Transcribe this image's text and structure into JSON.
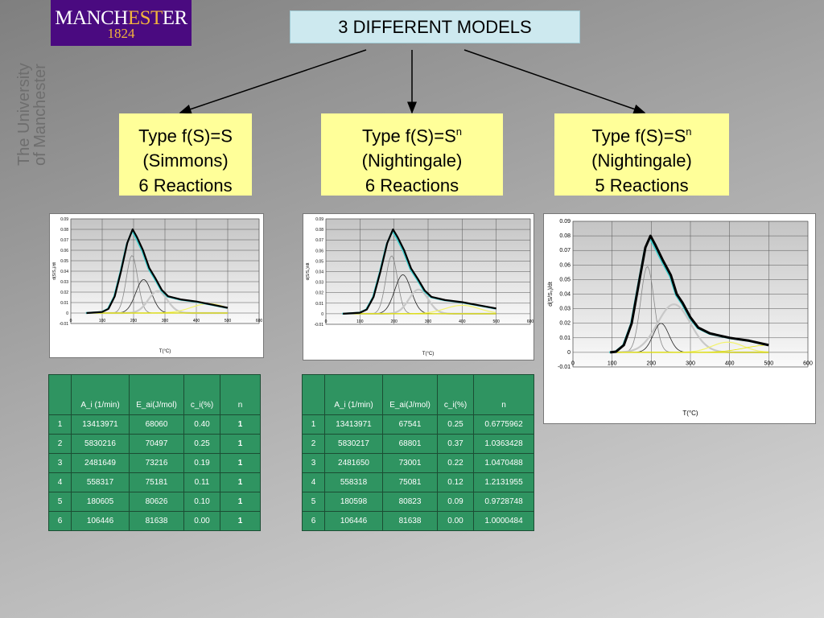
{
  "logo": {
    "name_pre": "MANCH",
    "name_est": "EST",
    "name_post": "ER",
    "year": "1824"
  },
  "watermark": {
    "line1": "The University",
    "line2": "of Manchester"
  },
  "title": "3 DIFFERENT MODELS",
  "models": [
    {
      "line1": "Type f(S)=S",
      "sup": "",
      "line2": "(Simmons)",
      "line3": "6 Reactions"
    },
    {
      "line1": "Type f(S)=S",
      "sup": "n",
      "line2": "(Nightingale)",
      "line3": "6 Reactions"
    },
    {
      "line1": "Type f(S)=S",
      "sup": "n",
      "line2": "(Nightingale)",
      "line3": "5 Reactions"
    }
  ],
  "chart_data": [
    {
      "type": "line",
      "title": "",
      "xlabel": "T(°C)",
      "ylabel": "d(S/S₀)/dt",
      "xlim": [
        0,
        600
      ],
      "ylim": [
        -0.01,
        0.09
      ],
      "xticks": [
        "0",
        "100",
        "200",
        "300",
        "400",
        "500",
        "600"
      ],
      "yticks": [
        "-0.01",
        "0",
        "0.01",
        "0.02",
        "0.03",
        "0.04",
        "0.05",
        "0.06",
        "0.07",
        "0.08",
        "0.09"
      ],
      "total": [
        [
          50,
          0
        ],
        [
          100,
          0.001
        ],
        [
          120,
          0.004
        ],
        [
          140,
          0.016
        ],
        [
          160,
          0.04
        ],
        [
          180,
          0.067
        ],
        [
          197,
          0.08
        ],
        [
          210,
          0.073
        ],
        [
          230,
          0.06
        ],
        [
          250,
          0.043
        ],
        [
          270,
          0.033
        ],
        [
          290,
          0.022
        ],
        [
          310,
          0.016
        ],
        [
          350,
          0.013
        ],
        [
          400,
          0.011
        ],
        [
          450,
          0.008
        ],
        [
          500,
          0.005
        ]
      ],
      "components": [
        {
          "center": 195,
          "height": 0.055,
          "width": 18,
          "color": "#888888"
        },
        {
          "center": 232,
          "height": 0.032,
          "width": 25,
          "color": "#222222"
        },
        {
          "center": 277,
          "height": 0.021,
          "width": 30,
          "color": "#c8c8c8"
        },
        {
          "center": 440,
          "height": 0.009,
          "width": 55,
          "color": "#f3f36a"
        }
      ]
    },
    {
      "type": "line",
      "title": "",
      "xlabel": "T(°C)",
      "ylabel": "d(S/S₀)/dt",
      "xlim": [
        0,
        600
      ],
      "ylim": [
        -0.01,
        0.09
      ],
      "xticks": [
        "0",
        "100",
        "200",
        "300",
        "400",
        "500",
        "600"
      ],
      "yticks": [
        "-0.01",
        "0",
        "0.01",
        "0.02",
        "0.03",
        "0.04",
        "0.05",
        "0.06",
        "0.07",
        "0.08",
        "0.09"
      ],
      "total": [
        [
          50,
          0
        ],
        [
          100,
          0.001
        ],
        [
          120,
          0.004
        ],
        [
          140,
          0.016
        ],
        [
          160,
          0.04
        ],
        [
          180,
          0.067
        ],
        [
          197,
          0.08
        ],
        [
          210,
          0.073
        ],
        [
          230,
          0.06
        ],
        [
          250,
          0.043
        ],
        [
          270,
          0.033
        ],
        [
          290,
          0.022
        ],
        [
          310,
          0.016
        ],
        [
          350,
          0.013
        ],
        [
          400,
          0.011
        ],
        [
          450,
          0.008
        ],
        [
          500,
          0.005
        ]
      ],
      "components": [
        {
          "center": 193,
          "height": 0.055,
          "width": 17,
          "color": "#888888"
        },
        {
          "center": 226,
          "height": 0.037,
          "width": 24,
          "color": "#222222"
        },
        {
          "center": 272,
          "height": 0.023,
          "width": 28,
          "color": "#c8c8c8"
        },
        {
          "center": 400,
          "height": 0.008,
          "width": 50,
          "color": "#f3f36a"
        }
      ]
    },
    {
      "type": "line",
      "title": "",
      "xlabel": "T(°C)",
      "ylabel": "d(S/S₀)/dt",
      "xlim": [
        0,
        600
      ],
      "ylim": [
        -0.01,
        0.09
      ],
      "xticks": [
        "0",
        "100",
        "200",
        "300",
        "400",
        "500",
        "600"
      ],
      "yticks": [
        "-0.01",
        "0",
        "0.01",
        "0.02",
        "0.03",
        "0.04",
        "0.05",
        "0.06",
        "0.07",
        "0.08",
        "0.09"
      ],
      "total": [
        [
          95,
          0
        ],
        [
          110,
          0.0005
        ],
        [
          130,
          0.005
        ],
        [
          150,
          0.02
        ],
        [
          170,
          0.05
        ],
        [
          185,
          0.072
        ],
        [
          198,
          0.08
        ],
        [
          210,
          0.074
        ],
        [
          230,
          0.063
        ],
        [
          250,
          0.053
        ],
        [
          265,
          0.04
        ],
        [
          280,
          0.034
        ],
        [
          300,
          0.024
        ],
        [
          320,
          0.017
        ],
        [
          350,
          0.013
        ],
        [
          400,
          0.01
        ],
        [
          450,
          0.008
        ],
        [
          500,
          0.005
        ]
      ],
      "components": [
        {
          "center": 190,
          "height": 0.059,
          "width": 17,
          "color": "#888888"
        },
        {
          "center": 225,
          "height": 0.02,
          "width": 20,
          "color": "#222222"
        },
        {
          "center": 258,
          "height": 0.033,
          "width": 42,
          "color": "#c8c8c8"
        },
        {
          "center": 395,
          "height": 0.007,
          "width": 40,
          "color": "#f3f36a"
        },
        {
          "center": 500,
          "height": 0.005,
          "width": 60,
          "color": "#e8e800"
        }
      ]
    }
  ],
  "tables": [
    {
      "headers": [
        "",
        "A_i (1/min)",
        "E_ai(J/mol)",
        "c_i(%)",
        "n"
      ],
      "rows": [
        [
          "1",
          "13413971",
          "68060",
          "0.40",
          "1"
        ],
        [
          "2",
          "5830216",
          "70497",
          "0.25",
          "1"
        ],
        [
          "3",
          "2481649",
          "73216",
          "0.19",
          "1"
        ],
        [
          "4",
          "558317",
          "75181",
          "0.11",
          "1"
        ],
        [
          "5",
          "180605",
          "80626",
          "0.10",
          "1"
        ],
        [
          "6",
          "106446",
          "81638",
          "0.00",
          "1"
        ]
      ]
    },
    {
      "headers": [
        "",
        "A_i (1/min)",
        "E_ai(J/mol)",
        "c_i(%)",
        "n"
      ],
      "rows": [
        [
          "1",
          "13413971",
          "67541",
          "0.25",
          "0.6775962"
        ],
        [
          "2",
          "5830217",
          "68801",
          "0.37",
          "1.0363428"
        ],
        [
          "3",
          "2481650",
          "73001",
          "0.22",
          "1.0470488"
        ],
        [
          "4",
          "558318",
          "75081",
          "0.12",
          "1.2131955"
        ],
        [
          "5",
          "180598",
          "80823",
          "0.09",
          "0.9728748"
        ],
        [
          "6",
          "106446",
          "81638",
          "0.00",
          "1.0000484"
        ]
      ]
    }
  ],
  "colors": {
    "total": "#000000",
    "fit": "#40d0d0",
    "logo": "#4a0a80",
    "box": "#ffff99",
    "table": "#2f9461"
  }
}
